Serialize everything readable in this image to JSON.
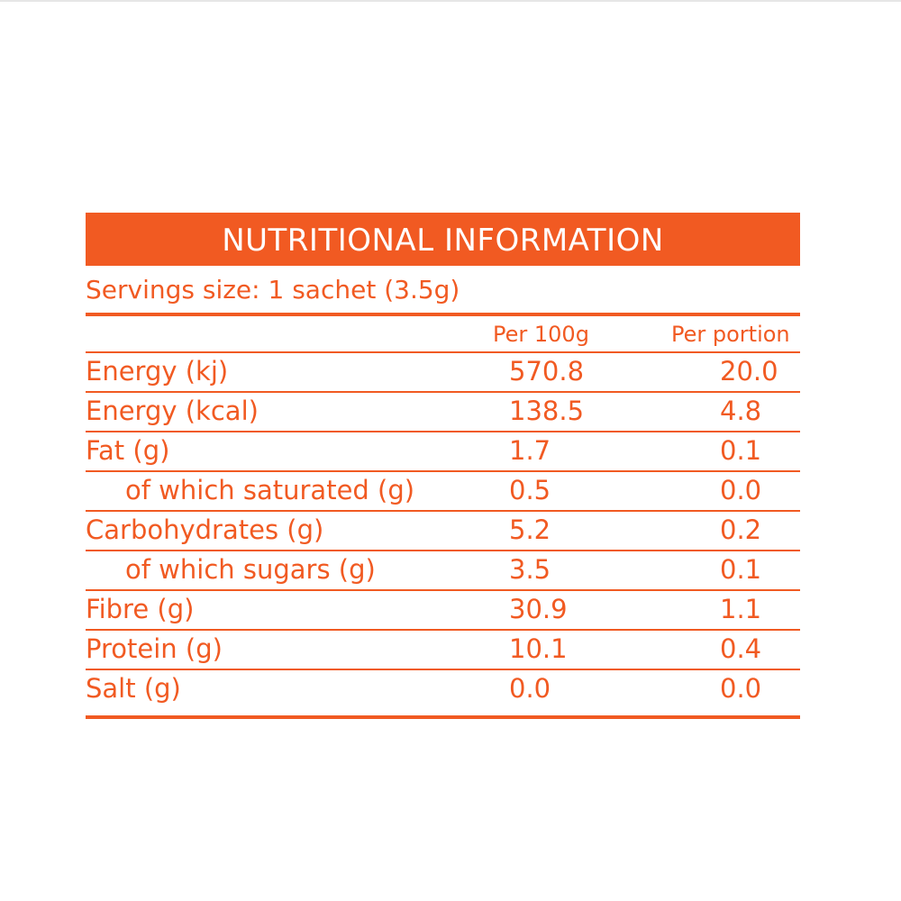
{
  "header": {
    "title": "NUTRITIONAL INFORMATION"
  },
  "serving": "Servings size: 1 sachet (3.5g)",
  "columns": [
    "Per 100g",
    "Per portion"
  ],
  "rows": [
    {
      "label": "Energy (kj)",
      "per100g": "570.8",
      "perPortion": "20.0",
      "indent": false
    },
    {
      "label": "Energy (kcal)",
      "per100g": "138.5",
      "perPortion": "4.8",
      "indent": false
    },
    {
      "label": "Fat (g)",
      "per100g": "1.7",
      "perPortion": "0.1",
      "indent": false
    },
    {
      "label": "of which saturated (g)",
      "per100g": "0.5",
      "perPortion": "0.0",
      "indent": true
    },
    {
      "label": "Carbohydrates (g)",
      "per100g": "5.2",
      "perPortion": "0.2",
      "indent": false
    },
    {
      "label": "of which sugars (g)",
      "per100g": "3.5",
      "perPortion": "0.1",
      "indent": true
    },
    {
      "label": "Fibre (g)",
      "per100g": "30.9",
      "perPortion": "1.1",
      "indent": false
    },
    {
      "label": "Protein (g)",
      "per100g": "10.1",
      "perPortion": "0.4",
      "indent": false
    },
    {
      "label": "Salt (g)",
      "per100g": "0.0",
      "perPortion": "0.0",
      "indent": false
    }
  ],
  "colors": {
    "accent": "#f15a22",
    "header_text": "#ffffff"
  }
}
